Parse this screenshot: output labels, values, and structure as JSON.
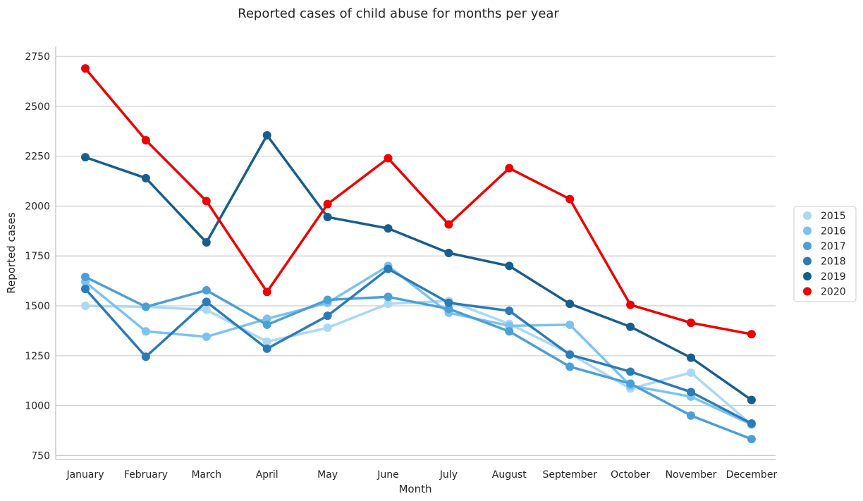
{
  "chart_data": {
    "type": "line",
    "title": "Reported cases of child abuse for months per year",
    "xlabel": "Month",
    "ylabel": "Reported cases",
    "categories": [
      "January",
      "February",
      "March",
      "April",
      "May",
      "June",
      "July",
      "August",
      "September",
      "October",
      "November",
      "December"
    ],
    "ylim": [
      730,
      2800
    ],
    "yticks": [
      750,
      1000,
      1250,
      1500,
      1750,
      2000,
      2250,
      2500,
      2750
    ],
    "grid": "horizontal",
    "legend_position": "right",
    "series": [
      {
        "name": "2015",
        "color": "#aad8f5",
        "values": [
          1500,
          1495,
          1480,
          1320,
          1390,
          1510,
          1525,
          1410,
          1260,
          1085,
          1165,
          905
        ]
      },
      {
        "name": "2016",
        "color": "#7cc2ef",
        "values": [
          1620,
          1372,
          1345,
          1435,
          1515,
          1700,
          1465,
          1400,
          1405,
          1100,
          1045,
          905
        ]
      },
      {
        "name": "2017",
        "color": "#4c9fd6",
        "values": [
          1645,
          1495,
          1578,
          1405,
          1530,
          1545,
          1485,
          1372,
          1195,
          1110,
          950,
          832
        ]
      },
      {
        "name": "2018",
        "color": "#2b7bb8",
        "values": [
          1585,
          1245,
          1520,
          1285,
          1450,
          1685,
          1515,
          1475,
          1255,
          1170,
          1068,
          910
        ]
      },
      {
        "name": "2019",
        "color": "#175e8c",
        "values": [
          2245,
          2140,
          1818,
          2355,
          1945,
          1888,
          1765,
          1700,
          1510,
          1395,
          1240,
          1028
        ]
      },
      {
        "name": "2020",
        "color": "#ee0000",
        "values": [
          2690,
          2330,
          2025,
          1570,
          2010,
          2240,
          1908,
          2190,
          2035,
          1505,
          1415,
          1358
        ]
      }
    ]
  }
}
